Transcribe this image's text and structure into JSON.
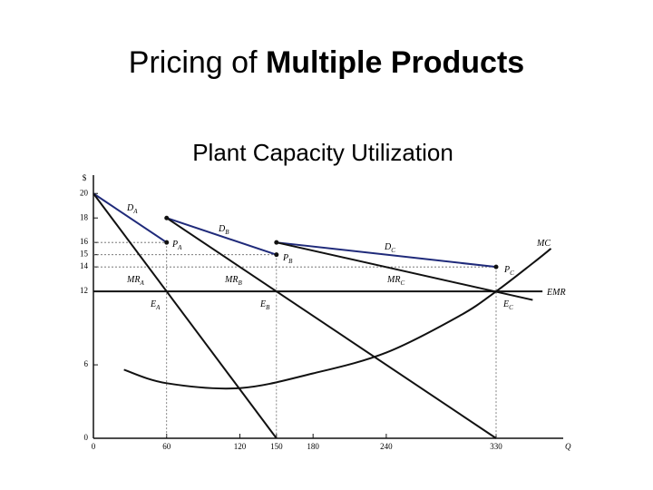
{
  "chart_data": {
    "type": "line",
    "title": "Pricing of",
    "title_bold": "Multiple Products",
    "subtitle": "Plant Capacity Utilization",
    "y_label": "$",
    "x_label": "Q",
    "xlim": [
      0,
      385
    ],
    "ylim": [
      0,
      21.5
    ],
    "xticks": [
      0,
      60,
      120,
      150,
      180,
      240,
      330
    ],
    "yticks": [
      0,
      6,
      12,
      14,
      15,
      16,
      18,
      20
    ],
    "series": [
      {
        "name": "D",
        "sub": "A",
        "color": "#1f2a7a",
        "x": [
          0,
          60
        ],
        "values": [
          20,
          16
        ]
      },
      {
        "name": "D",
        "sub": "B",
        "color": "#1f2a7a",
        "x": [
          60,
          150
        ],
        "values": [
          18,
          15
        ]
      },
      {
        "name": "D",
        "sub": "C",
        "color": "#1f2a7a",
        "x": [
          150,
          330
        ],
        "values": [
          16,
          14
        ]
      },
      {
        "name": "MR",
        "sub": "A",
        "color": "#111111",
        "x": [
          0,
          150
        ],
        "values": [
          20,
          0
        ]
      },
      {
        "name": "MR",
        "sub": "B",
        "color": "#111111",
        "x": [
          60,
          330
        ],
        "values": [
          18,
          0
        ]
      },
      {
        "name": "MR",
        "sub": "C",
        "color": "#111111",
        "x": [
          150,
          360
        ],
        "values": [
          16,
          11.3
        ]
      },
      {
        "name": "EMR",
        "color": "#111111",
        "x": [
          0,
          368
        ],
        "values": [
          12,
          12
        ]
      },
      {
        "name": "MC",
        "color": "#111111",
        "x": [
          25,
          60,
          120,
          180,
          240,
          300,
          330,
          360,
          375
        ],
        "values": [
          5.6,
          4.5,
          4.1,
          5.3,
          7,
          10,
          12,
          14.3,
          15.5
        ]
      }
    ],
    "points": [
      {
        "label": "P",
        "sub": "A",
        "x": 60,
        "y": 16
      },
      {
        "label": "P",
        "sub": "B",
        "x": 150,
        "y": 15
      },
      {
        "label": "P",
        "sub": "C",
        "x": 330,
        "y": 14
      },
      {
        "label": "E",
        "sub": "A",
        "x": 60,
        "y": 12
      },
      {
        "label": "E",
        "sub": "B",
        "x": 150,
        "y": 12
      },
      {
        "label": "E",
        "sub": "C",
        "x": 330,
        "y": 12
      }
    ]
  }
}
